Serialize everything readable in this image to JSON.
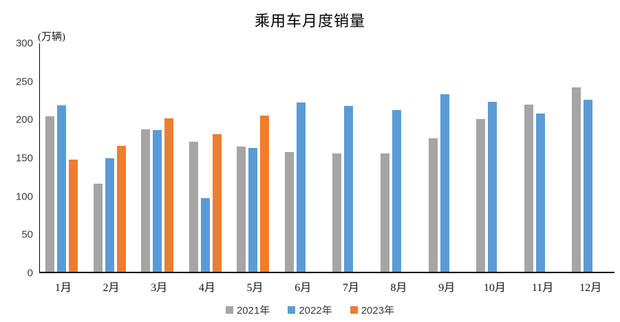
{
  "page": {
    "title": "乘用车月度销量",
    "unit_label": "(万辆)"
  },
  "chart_data": {
    "type": "bar",
    "title": "乘用车月度销量",
    "ylabel": "(万辆)",
    "xlabel": "",
    "categories": [
      "1月",
      "2月",
      "3月",
      "4月",
      "5月",
      "6月",
      "7月",
      "8月",
      "9月",
      "10月",
      "11月",
      "12月"
    ],
    "series": [
      {
        "name": "2021年",
        "color": "#A5A5A5",
        "values": [
          204.5,
          115.6,
          187.4,
          170.4,
          164.6,
          156.9,
          155.1,
          155.2,
          175.1,
          200.7,
          219.2,
          242.2
        ]
      },
      {
        "name": "2022年",
        "color": "#5B9BD5",
        "values": [
          218.6,
          148.7,
          186.4,
          96.5,
          162.3,
          222.2,
          217.4,
          212.5,
          233.2,
          223.1,
          207.5,
          226.3
        ]
      },
      {
        "name": "2023年",
        "color": "#ED7D31",
        "values": [
          146.9,
          165.3,
          201.7,
          181.1,
          205.1,
          null,
          null,
          null,
          null,
          null,
          null,
          null
        ]
      }
    ],
    "ylim": [
      0,
      300
    ],
    "yticks": [
      0,
      50,
      100,
      150,
      200,
      250,
      300
    ],
    "grid": false,
    "legend_position": "bottom",
    "axis_color": "#000000",
    "tick_label_color": "#3a3a3a"
  }
}
